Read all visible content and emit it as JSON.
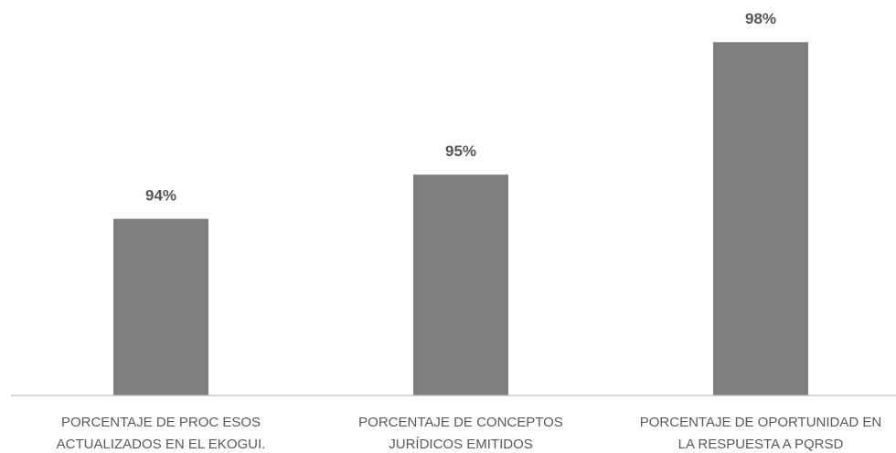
{
  "chart_data": {
    "type": "bar",
    "categories": [
      [
        "PORCENTAJE DE PROC ESOS",
        "ACTUALIZADOS EN EL EKOGUI."
      ],
      [
        "PORCENTAJE DE CONCEPTOS",
        "JURÍDICOS EMITIDOS"
      ],
      [
        "PORCENTAJE DE OPORTUNIDAD EN",
        "LA RESPUESTA A PQRSD"
      ]
    ],
    "values": [
      94,
      95,
      98
    ],
    "data_labels": [
      "94%",
      "95%",
      "98%"
    ],
    "title": "",
    "xlabel": "",
    "ylabel": "",
    "ylim": [
      90,
      98.5
    ],
    "grid": false,
    "legend": "none",
    "bar_color": "#7f7f7f"
  }
}
